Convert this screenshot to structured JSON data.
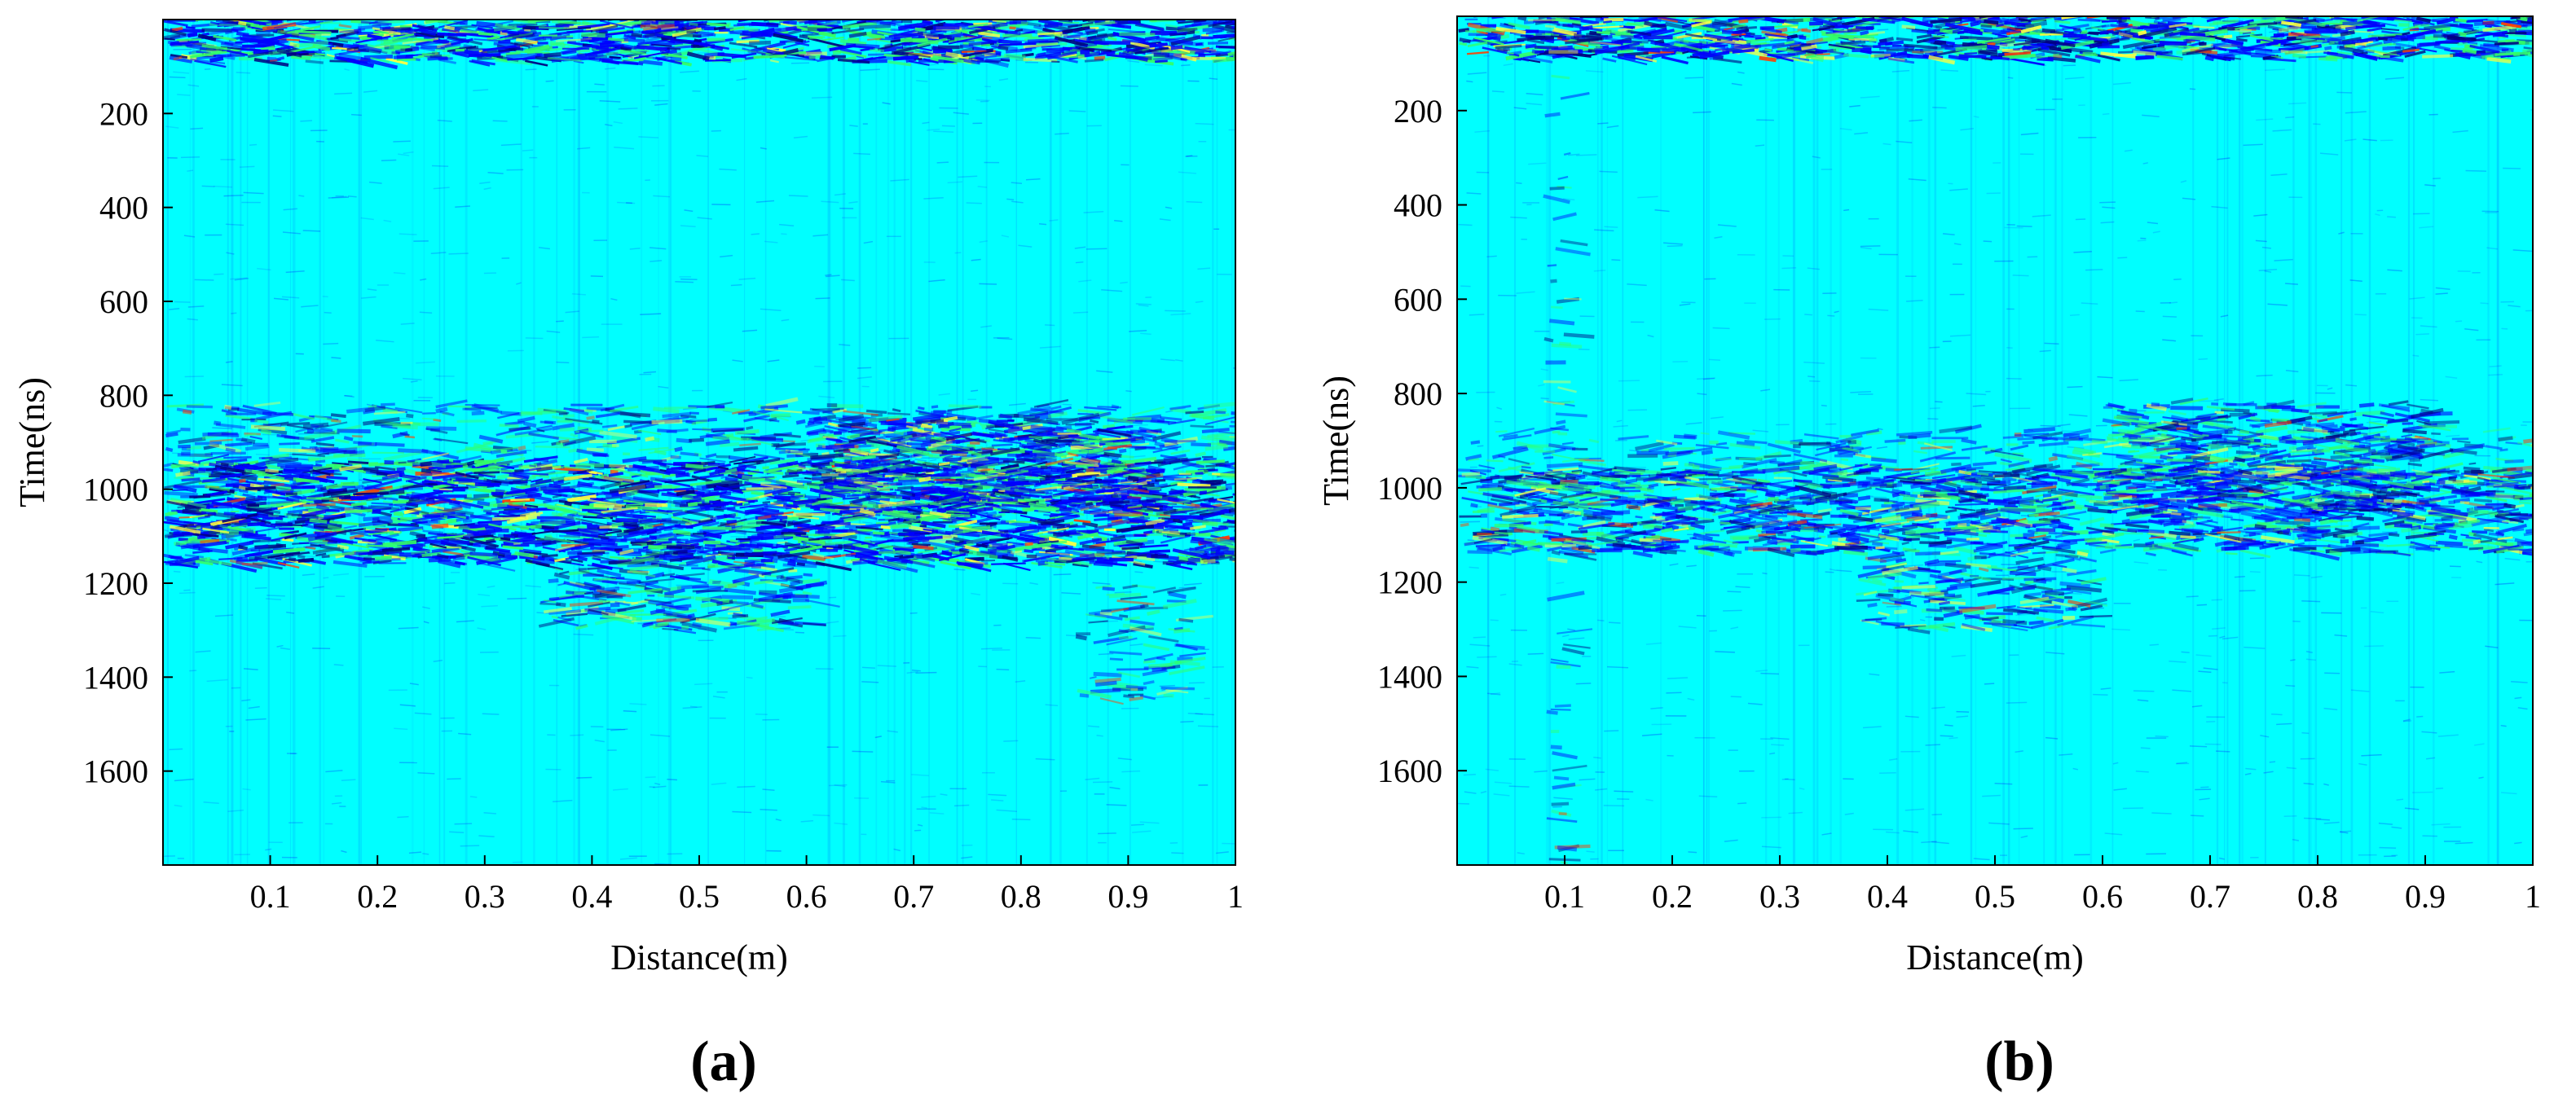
{
  "chart_data": [
    {
      "type": "heatmap",
      "panel_label": "(a)",
      "xlabel": "Distance(m)",
      "ylabel": "Time(ns)",
      "xlim": [
        0,
        1
      ],
      "ylim": [
        1800,
        0
      ],
      "x_ticks": [
        "0.1",
        "0.2",
        "0.3",
        "0.4",
        "0.5",
        "0.6",
        "0.7",
        "0.8",
        "0.9",
        "1"
      ],
      "x_tick_values": [
        0.1,
        0.2,
        0.3,
        0.4,
        0.5,
        0.6,
        0.7,
        0.8,
        0.9,
        1.0
      ],
      "y_ticks": [
        "200",
        "400",
        "600",
        "800",
        "1000",
        "1200",
        "1400",
        "1600"
      ],
      "y_tick_values": [
        200,
        400,
        600,
        800,
        1000,
        1200,
        1400,
        1600
      ],
      "background_color": "#00ffff",
      "colors": {
        "blue": "#0000ff",
        "navy": "#00007f",
        "green": "#33ff66",
        "yellow": "#ffff40",
        "red": "#ff4000"
      },
      "bands": [
        {
          "t_start": 0,
          "t_end": 90,
          "intensity": 0.95,
          "x_start": 0,
          "x_end": 1
        },
        {
          "t_start": 820,
          "t_end": 940,
          "intensity": 0.35,
          "x_start": 0,
          "x_end": 1
        },
        {
          "t_start": 940,
          "t_end": 1160,
          "intensity": 0.9,
          "x_start": 0,
          "x_end": 1
        },
        {
          "t_start": 1160,
          "t_end": 1300,
          "intensity": 0.45,
          "x_start": 0.35,
          "x_end": 0.6
        },
        {
          "t_start": 850,
          "t_end": 1050,
          "intensity": 0.7,
          "x_start": 0.6,
          "x_end": 0.9
        },
        {
          "t_start": 1200,
          "t_end": 1450,
          "intensity": 0.25,
          "x_start": 0.85,
          "x_end": 0.95
        }
      ]
    },
    {
      "type": "heatmap",
      "panel_label": "(b)",
      "xlabel": "Distance(m)",
      "ylabel": "Time(ns)",
      "xlim": [
        0,
        1
      ],
      "ylim": [
        1800,
        0
      ],
      "x_ticks": [
        "0.1",
        "0.2",
        "0.3",
        "0.4",
        "0.5",
        "0.6",
        "0.7",
        "0.8",
        "0.9",
        "1"
      ],
      "x_tick_values": [
        0.1,
        0.2,
        0.3,
        0.4,
        0.5,
        0.6,
        0.7,
        0.8,
        0.9,
        1.0
      ],
      "y_ticks": [
        "200",
        "400",
        "600",
        "800",
        "1000",
        "1200",
        "1400",
        "1600"
      ],
      "y_tick_values": [
        200,
        400,
        600,
        800,
        1000,
        1200,
        1400,
        1600
      ],
      "background_color": "#00ffff",
      "colors": {
        "blue": "#0000ff",
        "navy": "#00007f",
        "green": "#33ff66",
        "yellow": "#ffff40",
        "red": "#ff4000"
      },
      "bands": [
        {
          "t_start": 0,
          "t_end": 90,
          "intensity": 0.9,
          "x_start": 0,
          "x_end": 1
        },
        {
          "t_start": 880,
          "t_end": 1000,
          "intensity": 0.25,
          "x_start": 0,
          "x_end": 1
        },
        {
          "t_start": 960,
          "t_end": 1140,
          "intensity": 0.6,
          "x_start": 0,
          "x_end": 1
        },
        {
          "t_start": 1140,
          "t_end": 1300,
          "intensity": 0.4,
          "x_start": 0.37,
          "x_end": 0.58
        },
        {
          "t_start": 820,
          "t_end": 1050,
          "intensity": 0.5,
          "x_start": 0.6,
          "x_end": 0.9
        },
        {
          "t_start": 0,
          "t_end": 1800,
          "intensity": 0.15,
          "x_start": 0.08,
          "x_end": 0.1
        }
      ]
    }
  ]
}
